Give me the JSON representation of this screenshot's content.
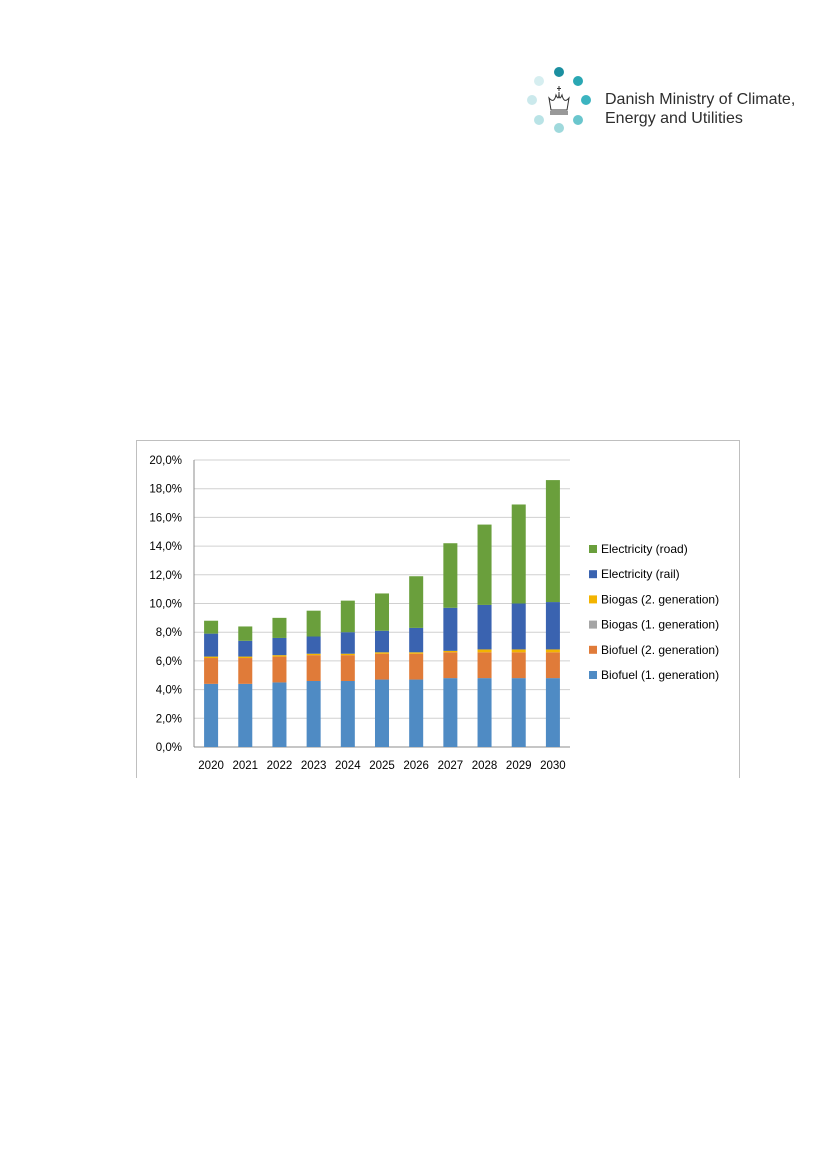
{
  "logo": {
    "line1": "Danish Ministry of Climate,",
    "line2": "Energy and Utilities",
    "dot_colors": [
      "#1b8fa0",
      "#2aa7b3",
      "#3cb4c0",
      "#6ac6cd",
      "#9fd9dc",
      "#b9e3e6",
      "#cbe9ec",
      "#d6eef0"
    ]
  },
  "chart_data": {
    "type": "bar",
    "stacked": true,
    "categories": [
      "2020",
      "2021",
      "2022",
      "2023",
      "2024",
      "2025",
      "2026",
      "2027",
      "2028",
      "2029",
      "2030"
    ],
    "ylim": [
      0,
      20
    ],
    "yticks": [
      "0,0%",
      "2,0%",
      "4,0%",
      "6,0%",
      "8,0%",
      "10,0%",
      "12,0%",
      "14,0%",
      "16,0%",
      "18,0%",
      "20,0%"
    ],
    "grid": true,
    "legend_position": "right",
    "series": [
      {
        "name": "Biofuel (1. generation)",
        "color": "#4f8bc4",
        "values": [
          4.4,
          4.4,
          4.5,
          4.6,
          4.6,
          4.7,
          4.7,
          4.8,
          4.8,
          4.8,
          4.8
        ]
      },
      {
        "name": "Biofuel (2. generation)",
        "color": "#e07b39",
        "values": [
          1.8,
          1.8,
          1.8,
          1.8,
          1.8,
          1.8,
          1.8,
          1.8,
          1.8,
          1.8,
          1.8
        ]
      },
      {
        "name": "Biogas (1. generation)",
        "color": "#a5a5a5",
        "values": [
          0.0,
          0.0,
          0.0,
          0.0,
          0.0,
          0.0,
          0.0,
          0.0,
          0.0,
          0.0,
          0.0
        ]
      },
      {
        "name": "Biogas (2. generation)",
        "color": "#f3b400",
        "values": [
          0.1,
          0.1,
          0.1,
          0.1,
          0.1,
          0.1,
          0.1,
          0.1,
          0.2,
          0.2,
          0.2
        ]
      },
      {
        "name": "Electricity (rail)",
        "color": "#3a63b0",
        "values": [
          1.6,
          1.1,
          1.2,
          1.2,
          1.5,
          1.5,
          1.7,
          3.0,
          3.1,
          3.2,
          3.3
        ]
      },
      {
        "name": "Electricity (road)",
        "color": "#6a9f3c",
        "values": [
          0.9,
          1.0,
          1.4,
          1.8,
          2.2,
          2.6,
          3.6,
          4.5,
          5.6,
          6.9,
          8.5
        ]
      }
    ]
  }
}
